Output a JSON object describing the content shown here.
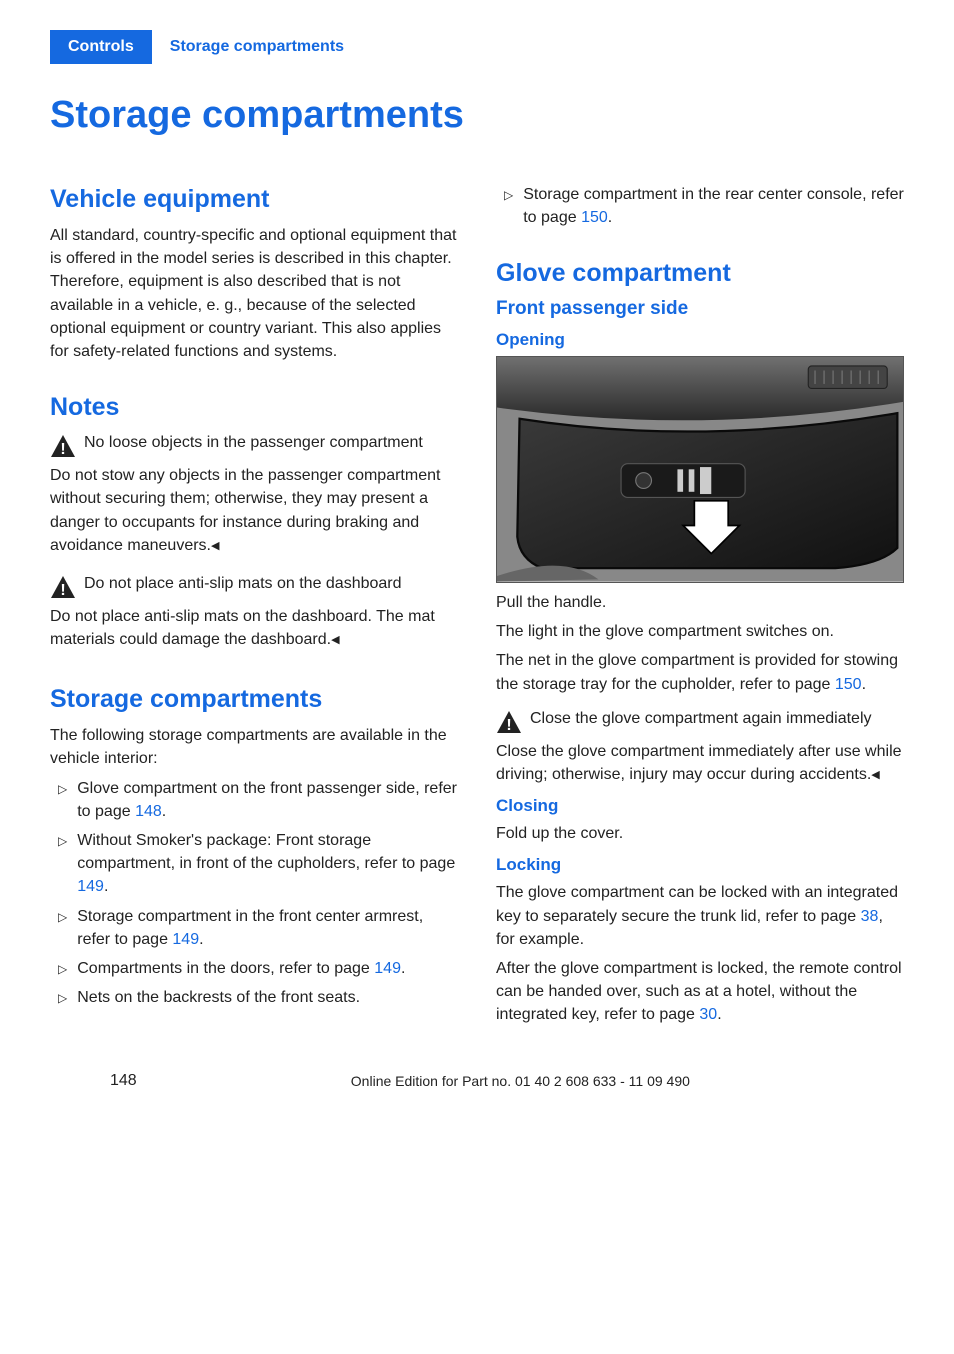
{
  "header": {
    "tab_active": "Controls",
    "tab_section": "Storage compartments"
  },
  "title": "Storage compartments",
  "left": {
    "vehicle_equipment": {
      "heading": "Vehicle equipment",
      "body": "All standard, country-specific and optional equipment that is offered in the model series is described in this chapter. Therefore, equipment is also described that is not available in a vehicle, e. g., because of the selected optional equipment or country variant. This also applies for safety-related functions and systems."
    },
    "notes": {
      "heading": "Notes",
      "warn1_title": "No loose objects in the passenger compartment",
      "warn1_body": "Do not stow any objects in the passenger compartment without securing them; otherwise, they may present a danger to occupants for instance during braking and avoidance maneuvers.",
      "warn2_title": "Do not place anti-slip mats on the dashboard",
      "warn2_body": "Do not place anti-slip mats on the dashboard. The mat materials could damage the dashboard."
    },
    "storage": {
      "heading": "Storage compartments",
      "intro": "The following storage compartments are available in the vehicle interior:",
      "items": [
        {
          "pre": "Glove compartment on the front passenger side, refer to page ",
          "link": "148",
          "post": "."
        },
        {
          "pre": "Without Smoker's package: Front storage compartment, in front of the cupholders, refer to page ",
          "link": "149",
          "post": "."
        },
        {
          "pre": "Storage compartment in the front center armrest, refer to page ",
          "link": "149",
          "post": "."
        },
        {
          "pre": "Compartments in the doors, refer to page ",
          "link": "149",
          "post": "."
        },
        {
          "pre": "Nets on the backrests of the front seats.",
          "link": "",
          "post": ""
        }
      ]
    }
  },
  "right": {
    "top_item": {
      "pre": "Storage compartment in the rear center console, refer to page ",
      "link": "150",
      "post": "."
    },
    "glove": {
      "heading": "Glove compartment",
      "front_side": "Front passenger side",
      "opening": "Opening",
      "opening_caption": "Pull the handle.",
      "p2": "The light in the glove compartment switches on.",
      "p3_pre": "The net in the glove compartment is provided for stowing the storage tray for the cupholder, refer to page ",
      "p3_link": "150",
      "p3_post": ".",
      "warn_title": "Close the glove compartment again immediately",
      "warn_body": "Close the glove compartment immediately after use while driving; otherwise, injury may occur during accidents.",
      "closing": "Closing",
      "closing_body": "Fold up the cover.",
      "locking": "Locking",
      "locking_p1_pre": "The glove compartment can be locked with an integrated key to separately secure the trunk lid, refer to page ",
      "locking_p1_link": "38",
      "locking_p1_post": ", for example.",
      "locking_p2_pre": "After the glove compartment is locked, the remote control can be handed over, such as at a hotel, without the integrated key, refer to page ",
      "locking_p2_link": "30",
      "locking_p2_post": "."
    }
  },
  "footer": {
    "page": "148",
    "edition": "Online Edition for Part no. 01 40 2 608 633 - 11 09 490"
  }
}
